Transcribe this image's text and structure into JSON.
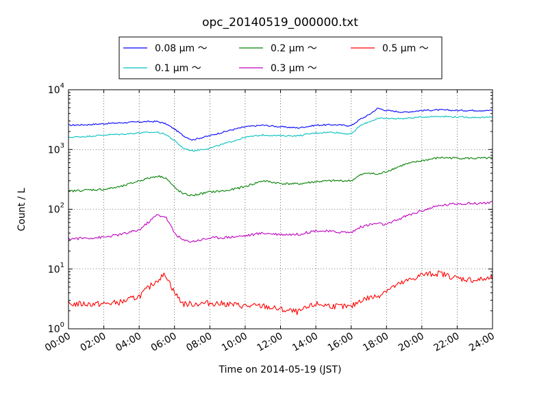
{
  "chart_data": {
    "type": "line",
    "title": "opc_20140519_000000.txt",
    "xlabel": "Time on 2014-05-19 (JST)",
    "ylabel": "Count / L",
    "yscale": "log",
    "ylim": [
      1,
      10000
    ],
    "xlim": [
      "00:00",
      "24:00"
    ],
    "x_tick_labels": [
      "00:00",
      "02:00",
      "04:00",
      "06:00",
      "08:00",
      "10:00",
      "12:00",
      "14:00",
      "16:00",
      "18:00",
      "20:00",
      "22:00",
      "24:00"
    ],
    "y_tick_labels": [
      {
        "base": "10",
        "exp": "0"
      },
      {
        "base": "10",
        "exp": "1"
      },
      {
        "base": "10",
        "exp": "2"
      },
      {
        "base": "10",
        "exp": "3"
      },
      {
        "base": "10",
        "exp": "4"
      }
    ],
    "grid": true,
    "legend_placement": "top",
    "x": [
      "00:00",
      "01:00",
      "02:00",
      "03:00",
      "04:00",
      "05:00",
      "05:30",
      "06:00",
      "06:30",
      "07:00",
      "08:00",
      "09:00",
      "10:00",
      "11:00",
      "12:00",
      "13:00",
      "14:00",
      "15:00",
      "16:00",
      "16:30",
      "17:00",
      "17:30",
      "18:00",
      "19:00",
      "20:00",
      "21:00",
      "22:00",
      "23:00",
      "24:00"
    ],
    "series": [
      {
        "name": "0.08 μm ～",
        "color": "#0000ff",
        "values": [
          2550,
          2600,
          2700,
          2800,
          2900,
          2950,
          2700,
          2200,
          1700,
          1450,
          1700,
          2050,
          2400,
          2550,
          2400,
          2300,
          2550,
          2600,
          2500,
          3200,
          3800,
          4900,
          4500,
          4200,
          4500,
          4600,
          4500,
          4500,
          4500
        ]
      },
      {
        "name": "0.1 μm ～",
        "color": "#00bfbf",
        "values": [
          1600,
          1650,
          1750,
          1800,
          1900,
          1950,
          1800,
          1400,
          1050,
          950,
          1050,
          1300,
          1600,
          1750,
          1700,
          1700,
          1900,
          1950,
          1800,
          2500,
          2900,
          3300,
          3300,
          3300,
          3500,
          3600,
          3500,
          3450,
          3450
        ]
      },
      {
        "name": "0.2 μm ～",
        "color": "#008000",
        "values": [
          200,
          210,
          215,
          240,
          300,
          360,
          340,
          230,
          180,
          170,
          195,
          205,
          240,
          300,
          270,
          265,
          290,
          300,
          300,
          370,
          410,
          380,
          430,
          560,
          650,
          730,
          720,
          710,
          720
        ]
      },
      {
        "name": "0.3 μm ～",
        "color": "#bf00bf",
        "values": [
          32,
          33,
          34,
          38,
          45,
          80,
          75,
          40,
          30,
          29,
          33,
          34,
          36,
          40,
          38,
          38,
          44,
          42,
          41,
          50,
          55,
          58,
          55,
          75,
          95,
          115,
          125,
          125,
          130
        ]
      },
      {
        "name": "0.5 μm ～",
        "color": "#ff0000",
        "values": [
          2.6,
          2.6,
          2.6,
          2.8,
          3.5,
          6.5,
          8.2,
          4.0,
          2.6,
          2.6,
          2.7,
          2.6,
          2.4,
          2.4,
          2.1,
          1.9,
          2.6,
          2.4,
          2.3,
          3.0,
          3.3,
          3.5,
          4.5,
          6.0,
          8.0,
          8.5,
          7.0,
          6.5,
          7.0
        ]
      }
    ]
  }
}
